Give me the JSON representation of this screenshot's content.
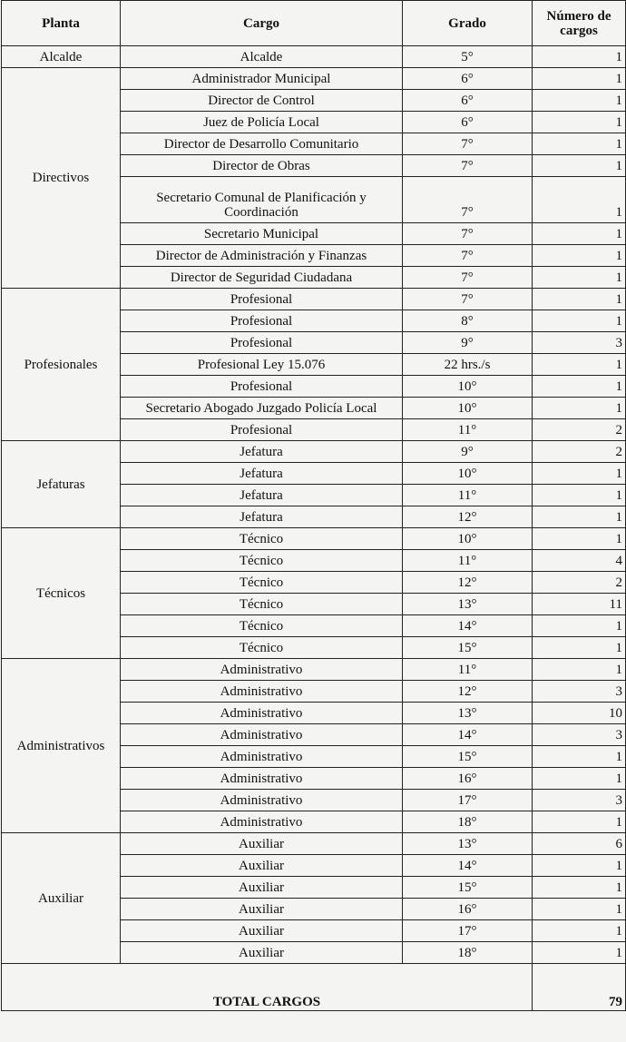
{
  "headers": {
    "planta": "Planta",
    "cargo": "Cargo",
    "grado": "Grado",
    "numero": "Número de cargos"
  },
  "groups": [
    {
      "planta": "Alcalde",
      "rows": [
        [
          "Alcalde",
          "5°",
          "1"
        ]
      ]
    },
    {
      "planta": "Directivos",
      "rows": [
        [
          "Administrador Municipal",
          "6°",
          "1"
        ],
        [
          "Director de Control",
          "6°",
          "1"
        ],
        [
          "Juez de Policía Local",
          "6°",
          "1"
        ],
        [
          "Director de Desarrollo Comunitario",
          "7°",
          "1"
        ],
        [
          "Director de Obras",
          "7°",
          "1"
        ],
        [
          "Secretario Comunal de Planificación y Coordinación",
          "7°",
          "1"
        ],
        [
          "Secretario Municipal",
          "7°",
          "1"
        ],
        [
          "Director de Administración y Finanzas",
          "7°",
          "1"
        ],
        [
          "Director de Seguridad Ciudadana",
          "7°",
          "1"
        ]
      ]
    },
    {
      "planta": "Profesionales",
      "rows": [
        [
          "Profesional",
          "7°",
          "1"
        ],
        [
          "Profesional",
          "8°",
          "1"
        ],
        [
          "Profesional",
          "9°",
          "3"
        ],
        [
          "Profesional Ley 15.076",
          "22 hrs./s",
          "1"
        ],
        [
          "Profesional",
          "10°",
          "1"
        ],
        [
          "Secretario Abogado Juzgado Policía Local",
          "10°",
          "1"
        ],
        [
          "Profesional",
          "11°",
          "2"
        ]
      ]
    },
    {
      "planta": "Jefaturas",
      "rows": [
        [
          "Jefatura",
          "9°",
          "2"
        ],
        [
          "Jefatura",
          "10°",
          "1"
        ],
        [
          "Jefatura",
          "11°",
          "1"
        ],
        [
          "Jefatura",
          "12°",
          "1"
        ]
      ]
    },
    {
      "planta": "Técnicos",
      "rows": [
        [
          "Técnico",
          "10°",
          "1"
        ],
        [
          "Técnico",
          "11°",
          "4"
        ],
        [
          "Técnico",
          "12°",
          "2"
        ],
        [
          "Técnico",
          "13°",
          "11"
        ],
        [
          "Técnico",
          "14°",
          "1"
        ],
        [
          "Técnico",
          "15°",
          "1"
        ]
      ]
    },
    {
      "planta": "Administrativos",
      "rows": [
        [
          "Administrativo",
          "11°",
          "1"
        ],
        [
          "Administrativo",
          "12°",
          "3"
        ],
        [
          "Administrativo",
          "13°",
          "10"
        ],
        [
          "Administrativo",
          "14°",
          "3"
        ],
        [
          "Administrativo",
          "15°",
          "1"
        ],
        [
          "Administrativo",
          "16°",
          "1"
        ],
        [
          "Administrativo",
          "17°",
          "3"
        ],
        [
          "Administrativo",
          "18°",
          "1"
        ]
      ]
    },
    {
      "planta": "Auxiliar",
      "rows": [
        [
          "Auxiliar",
          "13°",
          "6"
        ],
        [
          "Auxiliar",
          "14°",
          "1"
        ],
        [
          "Auxiliar",
          "15°",
          "1"
        ],
        [
          "Auxiliar",
          "16°",
          "1"
        ],
        [
          "Auxiliar",
          "17°",
          "1"
        ],
        [
          "Auxiliar",
          "18°",
          "1"
        ]
      ]
    }
  ],
  "total": {
    "label": "TOTAL CARGOS",
    "value": "79"
  }
}
